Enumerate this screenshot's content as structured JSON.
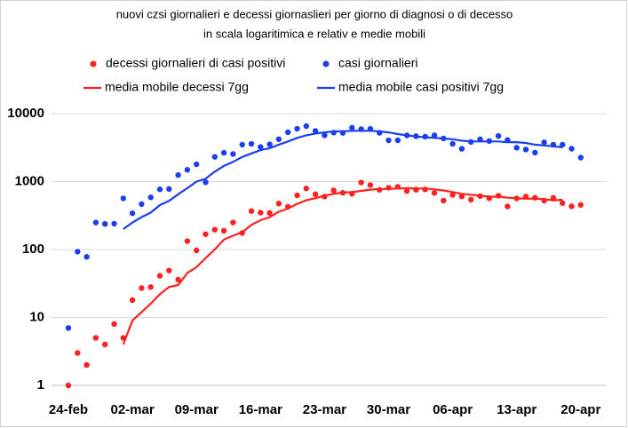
{
  "chart_data": {
    "type": "line",
    "title": "nuovi czsi giornalieri e decessi giornaslieri per giorno di diagnosi o di decesso",
    "subtitle": "in scala logaritimica e relativ e medie mobili",
    "categories": [
      "24-feb",
      null,
      null,
      null,
      null,
      null,
      null,
      "02-mar",
      null,
      null,
      null,
      null,
      null,
      null,
      "09-mar",
      null,
      null,
      null,
      null,
      null,
      null,
      "16-mar",
      null,
      null,
      null,
      null,
      null,
      null,
      "23-mar",
      null,
      null,
      null,
      null,
      null,
      null,
      "30-mar",
      null,
      null,
      null,
      null,
      null,
      null,
      "06-apr",
      null,
      null,
      null,
      null,
      null,
      null,
      "13-apr",
      null,
      null,
      null,
      null,
      null,
      null,
      "20-apr"
    ],
    "ylim": [
      1,
      10000
    ],
    "yticks": [
      1,
      10,
      100,
      1000,
      10000
    ],
    "log_scale": true,
    "grid": true,
    "series": [
      {
        "name": "decessi giornalieri di casi positivi",
        "color": "#ff2020",
        "mode": "markers",
        "values": [
          1,
          3,
          2,
          5,
          4,
          8,
          5,
          18,
          27,
          28,
          41,
          49,
          36,
          133,
          97,
          168,
          196,
          189,
          250,
          175,
          368,
          349,
          345,
          475,
          427,
          627,
          793,
          651,
          601,
          743,
          683,
          662,
          969,
          889,
          756,
          812,
          837,
          727,
          760,
          766,
          681,
          525,
          636,
          604,
          542,
          610,
          570,
          619,
          431,
          566,
          602,
          578,
          525,
          575,
          482,
          433,
          454
        ]
      },
      {
        "name": "casi giornalieri",
        "color": "#1a3ff0",
        "mode": "markers",
        "values": [
          7,
          93,
          78,
          250,
          238,
          240,
          566,
          342,
          466,
          587,
          769,
          778,
          1247,
          1492,
          1797,
          977,
          2313,
          2651,
          2547,
          3497,
          3590,
          3233,
          3526,
          4207,
          5322,
          5986,
          6557,
          5560,
          4789,
          5249,
          5210,
          6203,
          5909,
          5974,
          5217,
          4050,
          4053,
          4782,
          4668,
          4585,
          4805,
          4316,
          3599,
          3039,
          3836,
          4204,
          3951,
          4694,
          4092,
          3153,
          2972,
          2667,
          3786,
          3493,
          3491,
          3047,
          2256
        ]
      },
      {
        "name": "media mobile decessi 7gg",
        "color": "#ff2020",
        "mode": "lines",
        "values": [
          null,
          null,
          null,
          null,
          null,
          null,
          4,
          9,
          12,
          16,
          22,
          28,
          30,
          45,
          55,
          75,
          100,
          140,
          160,
          180,
          230,
          270,
          300,
          360,
          400,
          470,
          530,
          570,
          620,
          660,
          690,
          700,
          730,
          760,
          780,
          780,
          790,
          800,
          790,
          790,
          770,
          740,
          700,
          660,
          640,
          620,
          600,
          600,
          580,
          570,
          560,
          560,
          550,
          530,
          540,
          null,
          null
        ]
      },
      {
        "name": "media mobile casi positivi 7gg",
        "color": "#1a3ff0",
        "mode": "lines",
        "values": [
          null,
          null,
          null,
          null,
          null,
          null,
          200,
          250,
          300,
          350,
          450,
          520,
          650,
          800,
          1000,
          1100,
          1400,
          1700,
          1950,
          2300,
          2600,
          2900,
          3100,
          3500,
          3900,
          4400,
          4800,
          5100,
          5300,
          5500,
          5500,
          5600,
          5600,
          5600,
          5500,
          5300,
          5000,
          4800,
          4600,
          4500,
          4400,
          4300,
          4200,
          4000,
          3900,
          3900,
          3900,
          3900,
          3800,
          3800,
          3700,
          3500,
          3400,
          3300,
          3200,
          null,
          null
        ]
      }
    ]
  }
}
